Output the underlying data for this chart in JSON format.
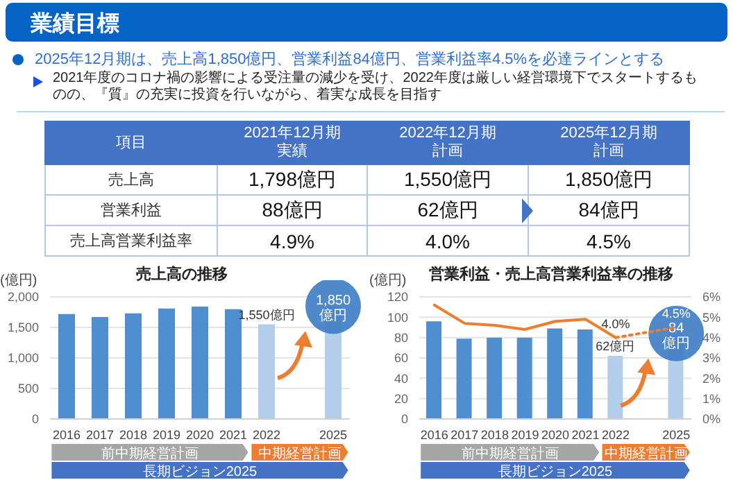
{
  "chart_data": [
    {
      "type": "other",
      "title": "業績目標",
      "subtitle": "2025年12月期は、売上高1,850億円、営業利益84億円、営業利益率4.5%を必達ラインとする",
      "annotations": [
        "2021年度のコロナ禍の影響による受注量の減少を受け、2022年度は厳しい経営環境下でスタートするものの、『質』の充実に投資を行いながら、着実な成長を目指す"
      ],
      "categories": [
        "項目",
        "2021年12月期実績",
        "2022年12月期計画",
        "2025年12月期計画"
      ],
      "y_categories": [
        "売上高",
        "営業利益",
        "売上高営業利益率"
      ],
      "cell_labels": [
        [
          "1,798億円",
          "1,550億円",
          "1,850億円"
        ],
        [
          "88億円",
          "62億円",
          "84億円"
        ],
        [
          "4.9%",
          "4.0%",
          "4.5%"
        ]
      ]
    },
    {
      "type": "bar",
      "title": "売上高の推移",
      "ylabel": "(億円)",
      "categories": [
        "2016",
        "2017",
        "2018",
        "2019",
        "2020",
        "2021",
        "2022",
        null,
        "2025"
      ],
      "values": [
        1720,
        1670,
        1730,
        1810,
        1840,
        1798,
        1550,
        null,
        1850
      ],
      "colors": [
        "#4f8fd0",
        "#4f8fd0",
        "#4f8fd0",
        "#4f8fd0",
        "#4f8fd0",
        "#4f8fd0",
        "#b4cdea",
        "#b4cdea",
        "#b4cdea"
      ],
      "value_labels": [
        null,
        null,
        null,
        null,
        null,
        null,
        "1,550億円",
        null,
        null
      ],
      "ylim": [
        0,
        2000
      ],
      "yticks": [
        0,
        500,
        {
          "value": 1000,
          "label": "1,000"
        },
        {
          "value": 1500,
          "label": "1,500"
        },
        {
          "value": 2000,
          "label": "2,000"
        }
      ],
      "grid": "y",
      "legend": false,
      "annotations": [
        {
          "text": "1,850\n億円",
          "x": "2025",
          "y": 1850
        },
        "前中期経営計画",
        "中期経営計画",
        "長期ビジョン2025"
      ]
    },
    {
      "type": "bar",
      "title": "営業利益・売上高営業利益率の推移",
      "ylabel": "(億円)",
      "categories": [
        "2016",
        "2017",
        "2018",
        "2019",
        "2020",
        "2021",
        "2022",
        null,
        "2025"
      ],
      "series": [
        {
          "type": "bar",
          "colors": [
            "#4f8fd0",
            "#4f8fd0",
            "#4f8fd0",
            "#4f8fd0",
            "#4f8fd0",
            "#4f8fd0",
            "#b4cdea",
            "#b4cdea",
            "#b4cdea"
          ],
          "values": [
            96,
            79,
            80,
            80,
            89,
            88,
            62,
            null,
            84
          ],
          "value_labels": [
            null,
            null,
            null,
            null,
            null,
            null,
            "62億円",
            null,
            null
          ]
        },
        {
          "type": "line",
          "axis": "y2",
          "color": "#ed7d31",
          "line_style": "solid",
          "values": [
            5.6,
            4.7,
            4.6,
            4.4,
            4.8,
            4.9,
            4.0,
            null,
            null
          ]
        },
        {
          "type": "line",
          "axis": "y2",
          "color": "#ed7d31",
          "line_style": "dotted",
          "values": [
            null,
            null,
            null,
            null,
            null,
            null,
            4.0,
            null,
            4.5
          ],
          "value_labels": [
            null,
            null,
            null,
            null,
            null,
            null,
            "4.0%",
            null,
            "4.5%"
          ]
        }
      ],
      "ylim": [
        0,
        120
      ],
      "yticks": [
        0,
        20,
        40,
        60,
        80,
        100,
        120
      ],
      "y2lim": [
        0,
        6
      ],
      "y2ticks": [
        {
          "value": 0,
          "label": "0%"
        },
        {
          "value": 1,
          "label": "1%"
        },
        {
          "value": 2,
          "label": "2%"
        },
        {
          "value": 3,
          "label": "3%"
        },
        {
          "value": 4,
          "label": "4%"
        },
        {
          "value": 5,
          "label": "5%"
        },
        {
          "value": 6,
          "label": "6%"
        }
      ],
      "grid": "y",
      "legend": false,
      "marker": "none",
      "annotations": [
        {
          "text": "84\n億円",
          "x": "2025",
          "y": 84
        },
        "前中期経営計画",
        "中期経営計画",
        "長期ビジョン2025"
      ]
    }
  ]
}
